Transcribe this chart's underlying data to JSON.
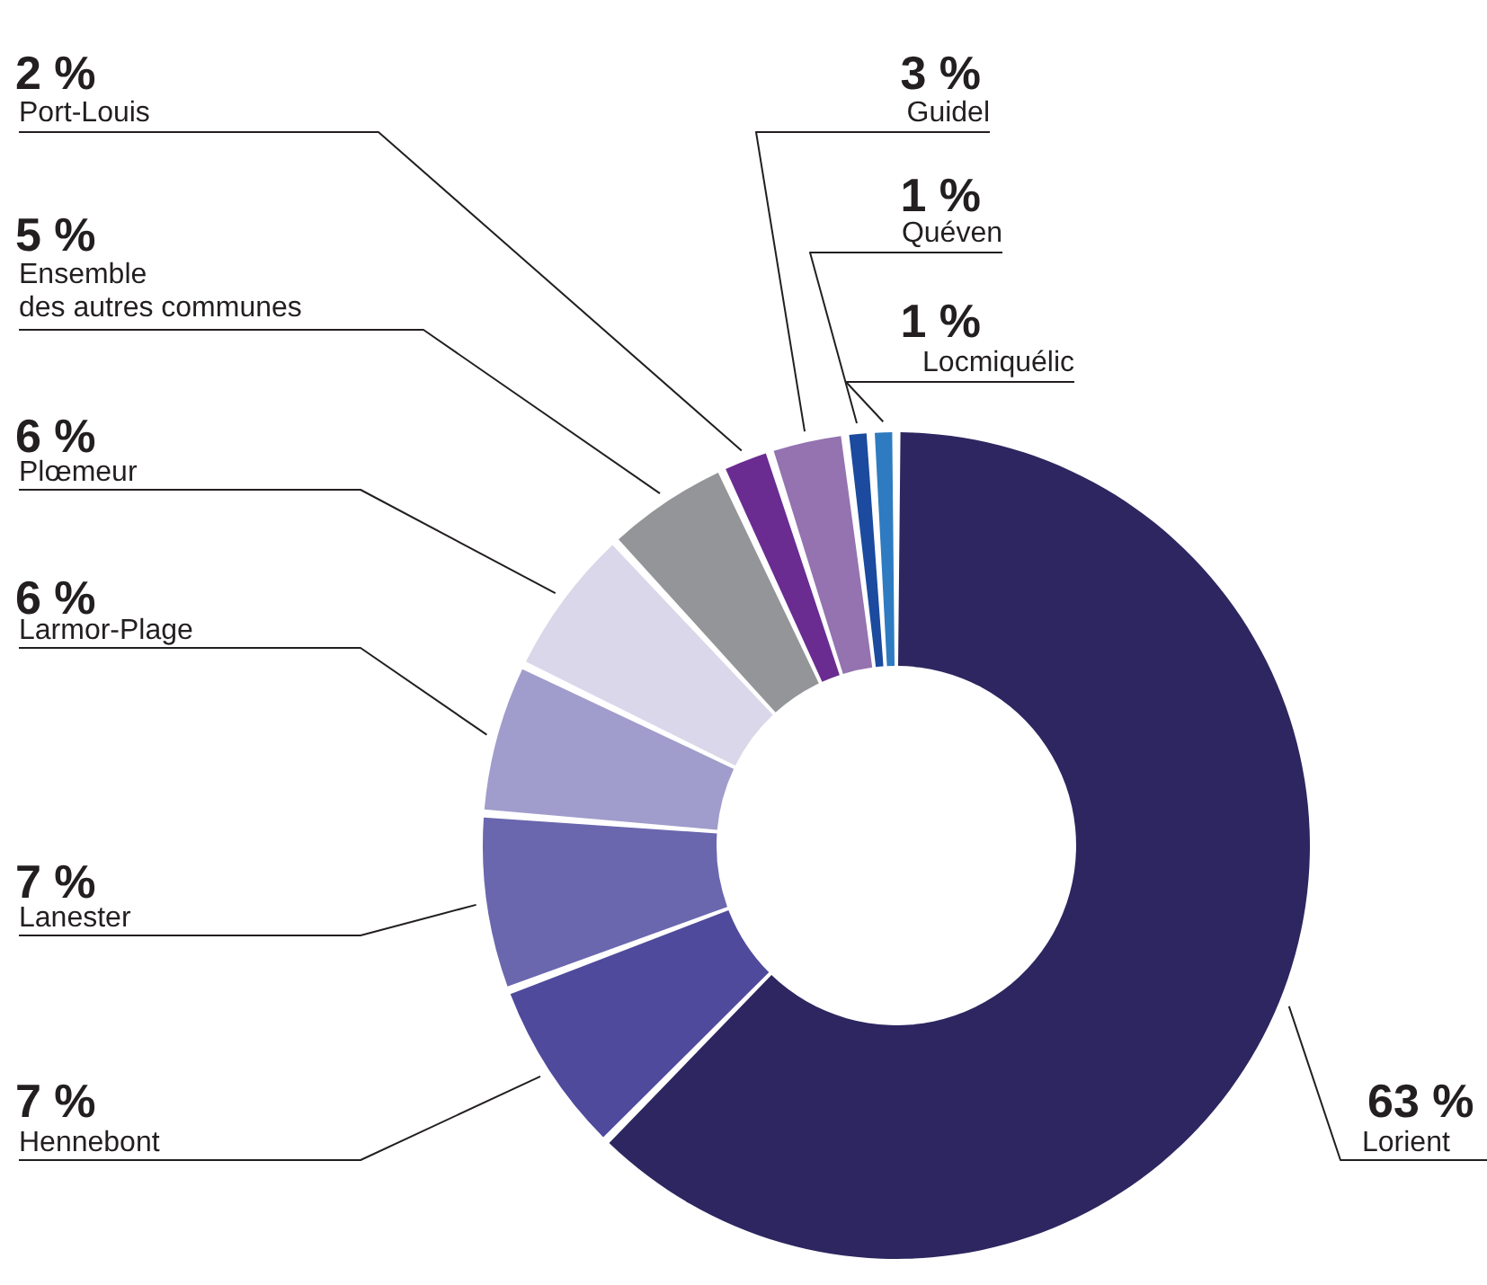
{
  "chart_data": {
    "type": "donut",
    "categories": [
      "Lorient",
      "Hennebont",
      "Lanester",
      "Larmor-Plage",
      "Plœmeur",
      "Ensemble\ndes autres communes",
      "Port-Louis",
      "Guidel",
      "Quéven",
      "Locmiquélic"
    ],
    "values": [
      63,
      7,
      7,
      6,
      6,
      5,
      2,
      3,
      1,
      1
    ],
    "value_labels": [
      "63 %",
      "7 %",
      "7 %",
      "6 %",
      "6 %",
      "5 %",
      "2 %",
      "3 %",
      "1 %",
      "1 %"
    ],
    "colors": [
      "#2d2660",
      "#4f4a9c",
      "#6a67ae",
      "#a09dcc",
      "#dad7ea",
      "#939598",
      "#6a2c91",
      "#9473b0",
      "#1b4a9e",
      "#2f7bc1"
    ]
  }
}
